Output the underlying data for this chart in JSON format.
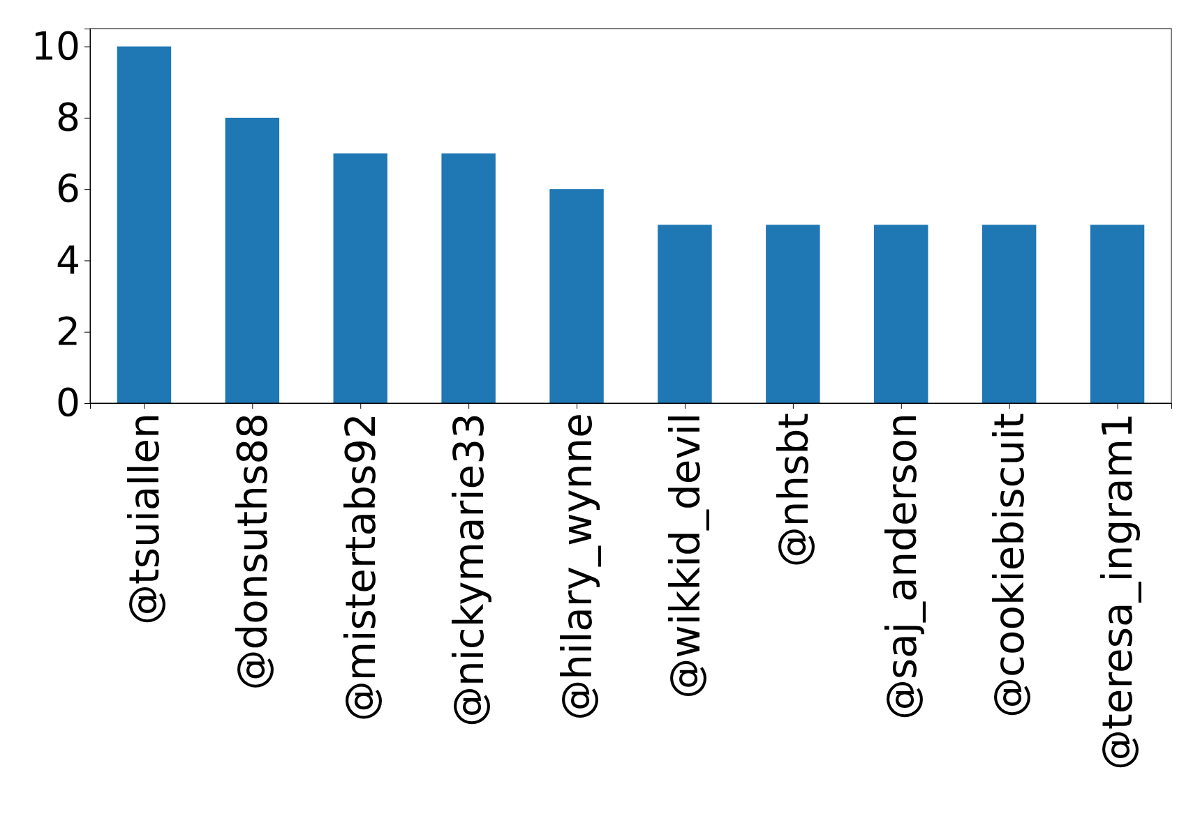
{
  "chart_data": {
    "type": "bar",
    "categories": [
      "@tsuiallen",
      "@donsuths88",
      "@mistertabs92",
      "@nickymarie33",
      "@hilary_wynne",
      "@wikkid_devil",
      "@nhsbt",
      "@saj_anderson",
      "@cookiebiscuit",
      "@teresa_ingram1"
    ],
    "values": [
      10,
      8,
      7,
      7,
      6,
      5,
      5,
      5,
      5,
      5
    ],
    "color": "#1f77b4",
    "ylim": [
      0,
      10.5
    ],
    "yticks": [
      0,
      2,
      4,
      6,
      8,
      10
    ],
    "grid": false
  }
}
